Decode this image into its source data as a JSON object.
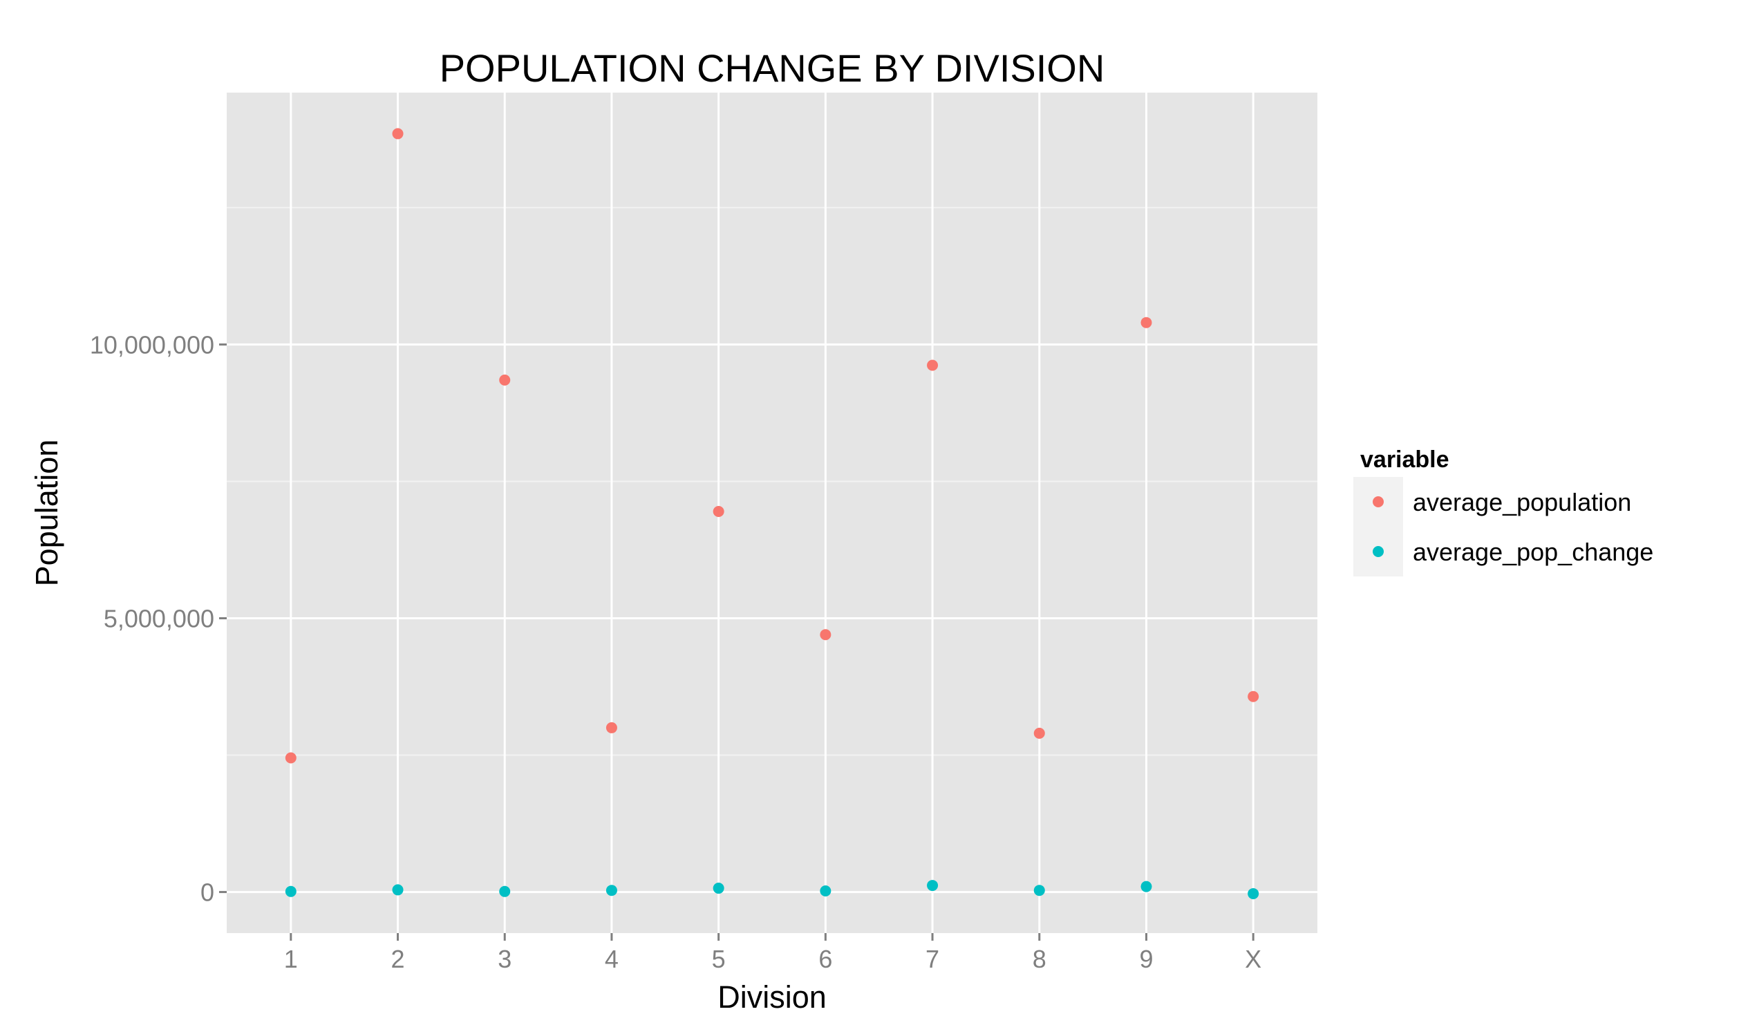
{
  "chart_data": {
    "type": "scatter",
    "title": "POPULATION CHANGE BY DIVISION",
    "xlabel": "Division",
    "ylabel": "Population",
    "categories": [
      "1",
      "2",
      "3",
      "4",
      "5",
      "6",
      "7",
      "8",
      "9",
      "X"
    ],
    "ylim": [
      -750000,
      14600000
    ],
    "y_ticks": [
      0,
      5000000,
      10000000
    ],
    "y_tick_labels": [
      "0",
      "5,000,000",
      "10,000,000"
    ],
    "grid": true,
    "background": "#e5e5e5",
    "legend": {
      "title": "variable",
      "position": "right"
    },
    "series": [
      {
        "name": "average_population",
        "color": "#f8766d",
        "values": [
          2450000,
          13850000,
          9350000,
          3000000,
          6950000,
          4700000,
          9620000,
          2900000,
          10400000,
          3570000
        ]
      },
      {
        "name": "average_pop_change",
        "color": "#00bfc4",
        "values": [
          10000,
          40000,
          10000,
          30000,
          70000,
          20000,
          120000,
          30000,
          100000,
          -30000
        ]
      }
    ]
  }
}
